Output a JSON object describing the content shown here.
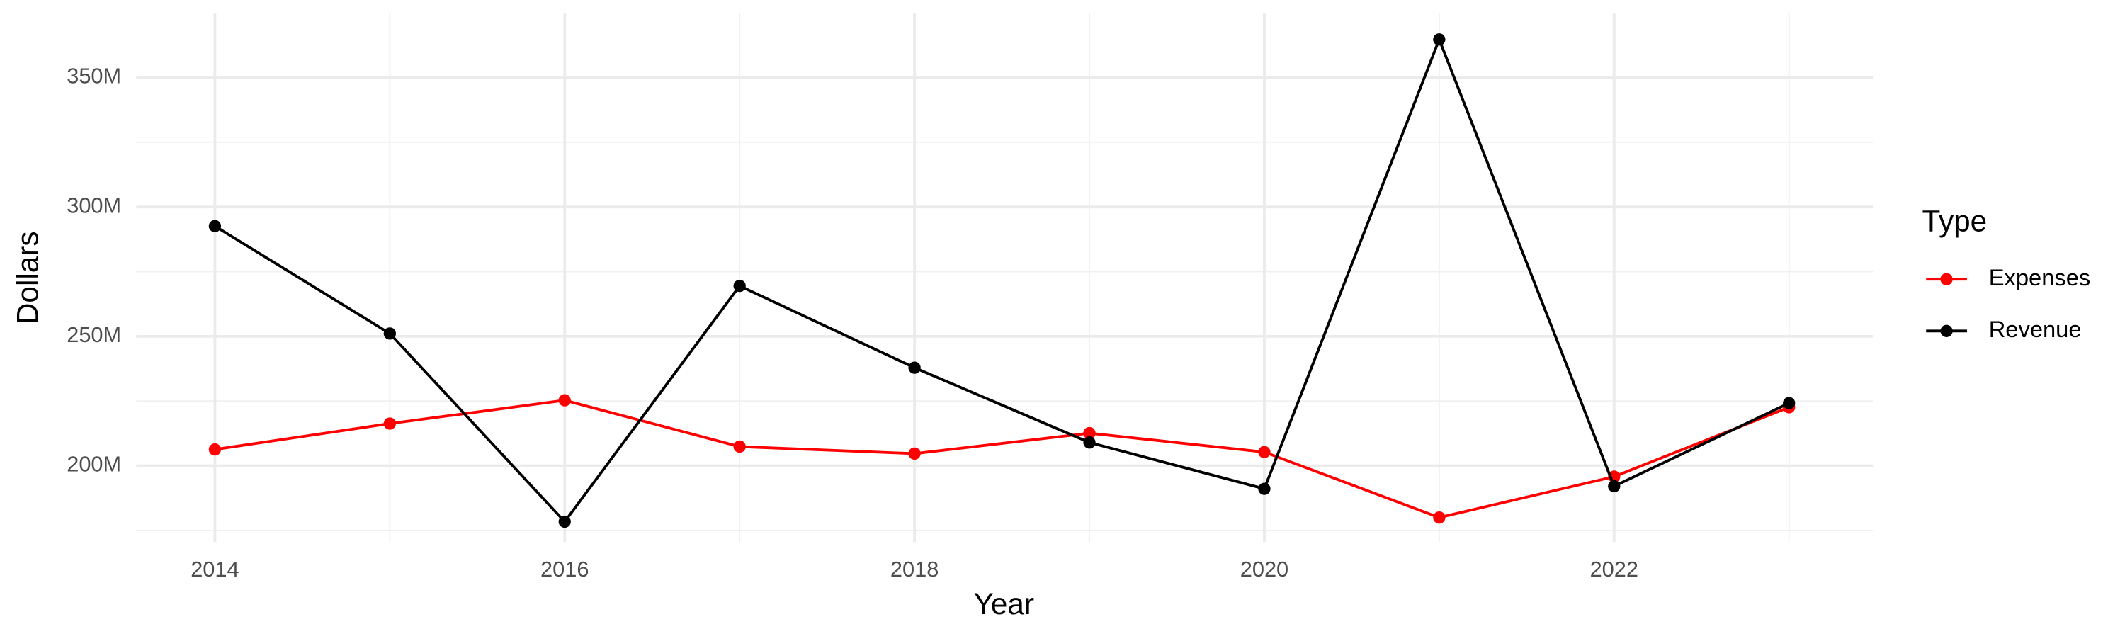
{
  "chart_data": {
    "type": "line",
    "x_label": "Year",
    "y_label": "Dollars",
    "legend_title": "Type",
    "x": [
      2014,
      2015,
      2016,
      2017,
      2018,
      2019,
      2020,
      2021,
      2022,
      2023
    ],
    "series": [
      {
        "name": "Expenses",
        "color": "#ff0000",
        "values": [
          206300000,
          216300000,
          225300000,
          207400000,
          204700000,
          212600000,
          205300000,
          180000000,
          195800000,
          222600000
        ]
      },
      {
        "name": "Revenue",
        "color": "#000000",
        "values": [
          292600000,
          251100000,
          178400000,
          269500000,
          237900000,
          209000000,
          191100000,
          364700000,
          192100000,
          224200000
        ]
      }
    ],
    "xlim": [
      2013.55,
      2023.48
    ],
    "xticks": [
      2014,
      2016,
      2018,
      2020,
      2022
    ],
    "ylim": [
      170500000,
      374700000
    ],
    "yticks": [
      {
        "value": 200000000,
        "label": "200M"
      },
      {
        "value": 250000000,
        "label": "250M"
      },
      {
        "value": 300000000,
        "label": "300M"
      },
      {
        "value": 350000000,
        "label": "350M"
      }
    ],
    "grid": true,
    "legend_position": "right"
  }
}
